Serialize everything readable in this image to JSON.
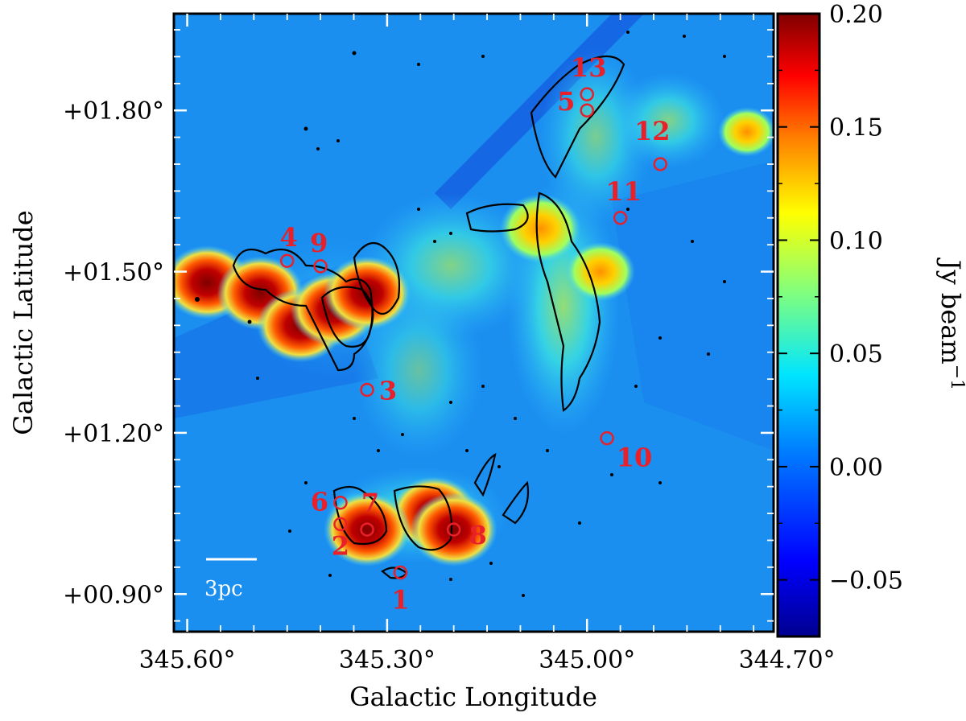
{
  "chart_data": {
    "type": "heatmap",
    "title": "",
    "xlabel": "Galactic Longitude",
    "ylabel": "Galactic Latitude",
    "x_ticks": [
      "345.60°",
      "345.30°",
      "345.00°",
      "344.70°"
    ],
    "x_tick_values": [
      345.6,
      345.3,
      345.0,
      344.7
    ],
    "y_ticks": [
      "+00.90°",
      "+01.20°",
      "+01.50°",
      "+01.80°"
    ],
    "y_tick_values": [
      0.9,
      1.2,
      1.5,
      1.8
    ],
    "xlim": [
      345.62,
      344.72
    ],
    "ylim": [
      0.83,
      1.98
    ],
    "colorbar": {
      "label": "Jy beam",
      "label_superscript": "−1",
      "ticks": [
        "0.20",
        "0.15",
        "0.10",
        "0.05",
        "0.00",
        "−0.05"
      ],
      "tick_values": [
        0.2,
        0.15,
        0.1,
        0.05,
        0.0,
        -0.05
      ],
      "range": [
        -0.075,
        0.2
      ],
      "colormap": "jet"
    },
    "scale_bar": {
      "label": "3pc"
    },
    "sources": [
      {
        "label": "1",
        "l": 345.28,
        "b": 0.94
      },
      {
        "label": "2",
        "l": 345.37,
        "b": 1.03
      },
      {
        "label": "3",
        "l": 345.33,
        "b": 1.28
      },
      {
        "label": "4",
        "l": 345.45,
        "b": 1.52
      },
      {
        "label": "5",
        "l": 345.0,
        "b": 1.8
      },
      {
        "label": "6",
        "l": 345.37,
        "b": 1.07
      },
      {
        "label": "7",
        "l": 345.33,
        "b": 1.02
      },
      {
        "label": "8",
        "l": 345.2,
        "b": 1.02
      },
      {
        "label": "9",
        "l": 345.4,
        "b": 1.51
      },
      {
        "label": "10",
        "l": 344.97,
        "b": 1.19
      },
      {
        "label": "11",
        "l": 344.95,
        "b": 1.6
      },
      {
        "label": "12",
        "l": 344.89,
        "b": 1.7
      },
      {
        "label": "13",
        "l": 345.0,
        "b": 1.83
      }
    ],
    "emission_peaks": [
      {
        "l": 345.57,
        "b": 1.48,
        "value": 0.2
      },
      {
        "l": 345.49,
        "b": 1.46,
        "value": 0.2
      },
      {
        "l": 345.43,
        "b": 1.4,
        "value": 0.2
      },
      {
        "l": 345.38,
        "b": 1.43,
        "value": 0.2
      },
      {
        "l": 345.33,
        "b": 1.46,
        "value": 0.2
      },
      {
        "l": 345.07,
        "b": 1.58,
        "value": 0.18
      },
      {
        "l": 344.98,
        "b": 1.5,
        "value": 0.14
      },
      {
        "l": 344.76,
        "b": 1.76,
        "value": 0.1
      },
      {
        "l": 345.23,
        "b": 1.05,
        "value": 0.2
      },
      {
        "l": 345.2,
        "b": 1.02,
        "value": 0.2
      },
      {
        "l": 345.33,
        "b": 1.02,
        "value": 0.2
      }
    ],
    "colors": {
      "background_field": "#1a8ff0",
      "source_marker": "#e8202a",
      "contour": "#000000"
    }
  }
}
